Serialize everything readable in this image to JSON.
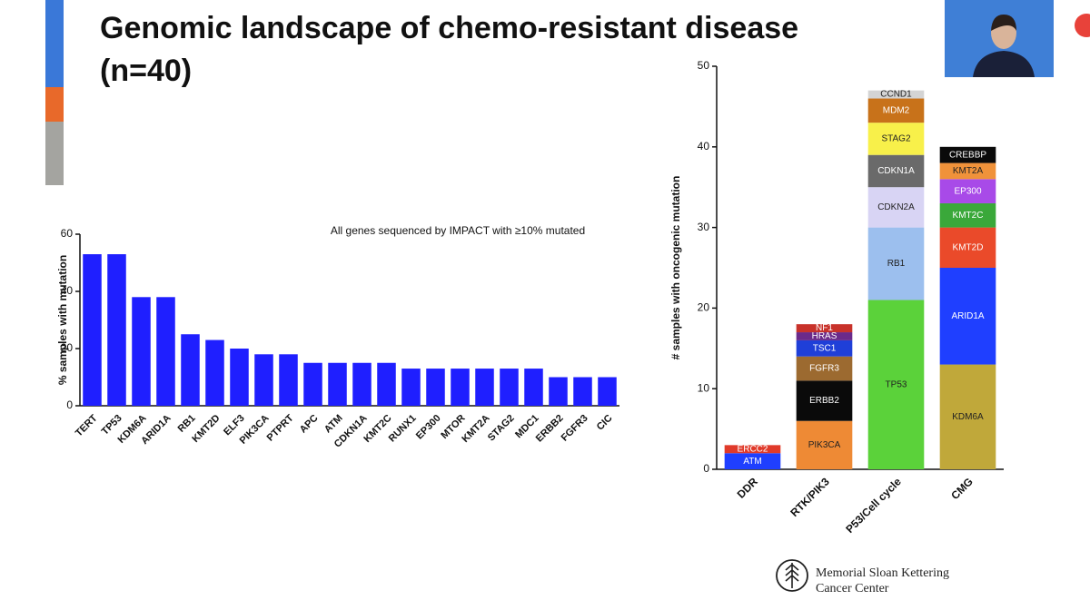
{
  "slide": {
    "title_lines": [
      "Genomic landscape of chemo-resistant disease",
      "(n=40)"
    ],
    "logo_lines": [
      "Memorial Sloan Kettering",
      "Cancer Center"
    ]
  },
  "chart_data": [
    {
      "type": "bar",
      "annotation": "All genes sequenced by IMPACT with ≥10% mutated",
      "y_label": "% samples with mutation",
      "categories": [
        "TERT",
        "TP53",
        "KDM6A",
        "ARID1A",
        "RB1",
        "KMT2D",
        "ELF3",
        "PIK3CA",
        "PTPRT",
        "APC",
        "ATM",
        "CDKN1A",
        "KMT2C",
        "RUNX1",
        "EP300",
        "MTOR",
        "KMT2A",
        "STAG2",
        "MDC1",
        "ERBB2",
        "FGFR3",
        "CIC"
      ],
      "values": [
        53,
        53,
        38,
        38,
        25,
        23,
        20,
        18,
        18,
        15,
        15,
        15,
        15,
        13,
        13,
        13,
        13,
        13,
        13,
        10,
        10,
        10
      ],
      "color": "#1f1fff",
      "ylim": [
        0,
        60
      ],
      "yticks": [
        0,
        20,
        40,
        60
      ]
    },
    {
      "type": "stacked_bar",
      "y_label": "# samples with oncogenic mutation",
      "categories": [
        "DDR",
        "RTK/PIK3",
        "P53/Cell cycle",
        "CMG"
      ],
      "ylim": [
        0,
        50
      ],
      "yticks": [
        0,
        10,
        20,
        30,
        40,
        50
      ],
      "series": [
        {
          "name": "ATM",
          "color": "#1f3fff",
          "values": [
            2,
            null,
            null,
            null
          ]
        },
        {
          "name": "ERCC2",
          "color": "#e03a2a",
          "values": [
            1,
            null,
            null,
            null
          ]
        },
        {
          "name": "PIK3CA",
          "color": "#ee8a35",
          "values": [
            null,
            6,
            null,
            null
          ]
        },
        {
          "name": "ERBB2",
          "color": "#0a0a0a",
          "values": [
            null,
            5,
            null,
            null
          ]
        },
        {
          "name": "FGFR3",
          "color": "#9c6a30",
          "values": [
            null,
            3,
            null,
            null
          ]
        },
        {
          "name": "TSC1",
          "color": "#1f3fd8",
          "values": [
            null,
            2,
            null,
            null
          ]
        },
        {
          "name": "HRAS",
          "color": "#6a2a8a",
          "values": [
            null,
            1,
            null,
            null
          ]
        },
        {
          "name": "NF1",
          "color": "#c8322a",
          "values": [
            null,
            1,
            null,
            null
          ]
        },
        {
          "name": "TP53",
          "color": "#5bd23a",
          "values": [
            null,
            null,
            21,
            null
          ]
        },
        {
          "name": "RB1",
          "color": "#9cbfee",
          "values": [
            null,
            null,
            9,
            null
          ]
        },
        {
          "name": "CDKN2A",
          "color": "#d8d4f4",
          "values": [
            null,
            null,
            5,
            null
          ]
        },
        {
          "name": "CDKN1A",
          "color": "#6a6a6a",
          "values": [
            null,
            null,
            4,
            null
          ]
        },
        {
          "name": "STAG2",
          "color": "#f8f04a",
          "values": [
            null,
            null,
            4,
            null
          ]
        },
        {
          "name": "MDM2",
          "color": "#c8721a",
          "values": [
            null,
            null,
            3,
            null
          ]
        },
        {
          "name": "CCND1",
          "color": "#d4d4d4",
          "values": [
            null,
            null,
            1,
            null
          ]
        },
        {
          "name": "KDM6A",
          "color": "#c0a83a",
          "values": [
            null,
            null,
            null,
            13
          ]
        },
        {
          "name": "ARID1A",
          "color": "#1f3fff",
          "values": [
            null,
            null,
            null,
            12
          ]
        },
        {
          "name": "KMT2D",
          "color": "#ea4a2a",
          "values": [
            null,
            null,
            null,
            5
          ]
        },
        {
          "name": "KMT2C",
          "color": "#3aa83a",
          "values": [
            null,
            null,
            null,
            3
          ]
        },
        {
          "name": "EP300",
          "color": "#a84ae8",
          "values": [
            null,
            null,
            null,
            3
          ]
        },
        {
          "name": "KMT2A",
          "color": "#f0923a",
          "values": [
            null,
            null,
            null,
            2
          ]
        },
        {
          "name": "CREBBP",
          "color": "#0a0a0a",
          "values": [
            null,
            null,
            null,
            2
          ]
        }
      ]
    }
  ]
}
